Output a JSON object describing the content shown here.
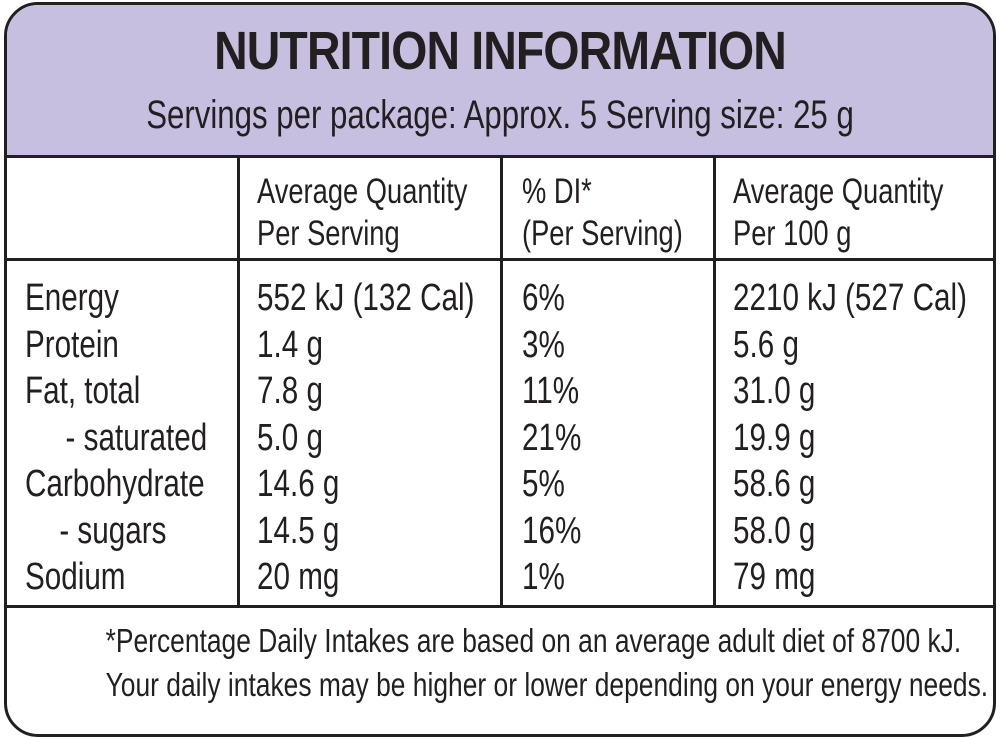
{
  "header": {
    "title": "NUTRITION INFORMATION",
    "subtitle": "Servings per package: Approx. 5 Serving size: 25 g"
  },
  "columns": {
    "per_serving": {
      "line1": "Average Quantity",
      "line2": "Per Serving"
    },
    "di": {
      "line1": "% DI*",
      "line2": "(Per Serving)"
    },
    "per_100g": {
      "line1": "Average Quantity",
      "line2": "Per 100 g"
    }
  },
  "rows": [
    {
      "nutrient": "Energy",
      "per_serving": "552 kJ (132 Cal)",
      "di": "6%",
      "per_100g": "2210 kJ (527 Cal)"
    },
    {
      "nutrient": "Protein",
      "per_serving": "1.4 g",
      "di": "3%",
      "per_100g": "5.6 g"
    },
    {
      "nutrient": "Fat, total",
      "per_serving": "7.8 g",
      "di": "11%",
      "per_100g": "31.0 g"
    },
    {
      "nutrient": "- saturated",
      "per_serving": "5.0 g",
      "di": "21%",
      "per_100g": "19.9 g"
    },
    {
      "nutrient": "Carbohydrate",
      "per_serving": "14.6 g",
      "di": "5%",
      "per_100g": "58.6 g"
    },
    {
      "nutrient": "- sugars",
      "per_serving": "14.5 g",
      "di": "16%",
      "per_100g": "58.0 g"
    },
    {
      "nutrient": "Sodium",
      "per_serving": "20 mg",
      "di": "1%",
      "per_100g": "79 mg"
    }
  ],
  "footer": {
    "line1": "*Percentage Daily Intakes are based on an average adult diet of 8700 kJ.",
    "line2": "Your daily intakes may be higher or lower depending on your energy needs."
  },
  "colors": {
    "header_bg": "#c6bfdf",
    "text": "#231f20"
  }
}
